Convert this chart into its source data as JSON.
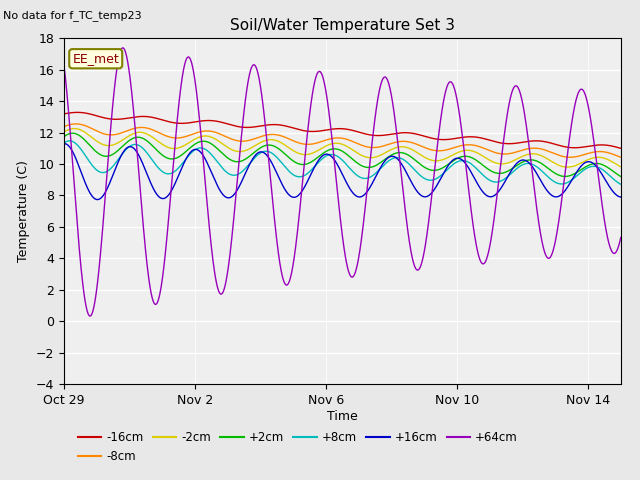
{
  "title": "Soil/Water Temperature Set 3",
  "xlabel": "Time",
  "ylabel": "Temperature (C)",
  "note": "No data for f_TC_temp23",
  "legend_label": "EE_met",
  "ylim": [
    -4,
    18
  ],
  "yticks": [
    -4,
    -2,
    0,
    2,
    4,
    6,
    8,
    10,
    12,
    14,
    16,
    18
  ],
  "xtick_positions": [
    0,
    4,
    8,
    12,
    16
  ],
  "xtick_labels": [
    "Oct 29",
    "Nov 2",
    "Nov 6",
    "Nov 10",
    "Nov 14"
  ],
  "days_total": 17,
  "bg_color": "#e8e8e8",
  "plot_bg_color": "#efefef",
  "series": [
    {
      "label": "-16cm",
      "color": "#cc0000",
      "base_s": 13.2,
      "base_e": 11.0,
      "amp_s": 0.15,
      "amp_e": 0.15,
      "period": 2.0,
      "phase": 0.0
    },
    {
      "label": "-8cm",
      "color": "#ff8800",
      "base_s": 12.3,
      "base_e": 10.5,
      "amp_s": 0.3,
      "amp_e": 0.2,
      "period": 2.0,
      "phase": 0.3
    },
    {
      "label": "-2cm",
      "color": "#ddcc00",
      "base_s": 11.8,
      "base_e": 10.0,
      "amp_s": 0.5,
      "amp_e": 0.3,
      "period": 2.0,
      "phase": 0.5
    },
    {
      "label": "+2cm",
      "color": "#00bb00",
      "base_s": 11.3,
      "base_e": 9.5,
      "amp_s": 0.7,
      "amp_e": 0.35,
      "period": 2.0,
      "phase": 0.7
    },
    {
      "label": "+8cm",
      "color": "#00bbbb",
      "base_s": 10.5,
      "base_e": 9.2,
      "amp_s": 1.0,
      "amp_e": 0.4,
      "period": 2.0,
      "phase": 1.0
    },
    {
      "label": "+16cm",
      "color": "#0000cc",
      "base_s": 9.5,
      "base_e": 9.0,
      "amp_s": 1.8,
      "amp_e": 0.8,
      "period": 2.0,
      "phase": 1.5
    },
    {
      "label": "+64cm",
      "color": "#9900bb",
      "base_s": 9.0,
      "base_e": 9.5,
      "amp_s": 9.0,
      "amp_e": 3.5,
      "period": 2.0,
      "phase": 2.2
    }
  ]
}
